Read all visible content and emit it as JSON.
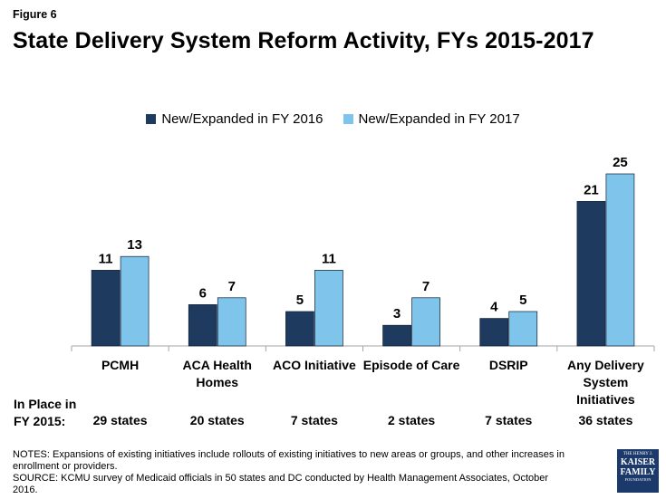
{
  "figure_label": "Figure 6",
  "title": "State Delivery System Reform Activity, FYs 2015-2017",
  "colors": {
    "series_2016": "#1f3a5f",
    "series_2017": "#7fc4ea",
    "axis": "#a6a6a6"
  },
  "chart_data": {
    "type": "bar",
    "categories": [
      "PCMH",
      "ACA Health Homes",
      "ACO Initiative",
      "Episode of Care",
      "DSRIP",
      "Any Delivery System Initiatives"
    ],
    "series": [
      {
        "name": "New/Expanded in FY 2016",
        "values": [
          11,
          6,
          5,
          3,
          4,
          21
        ]
      },
      {
        "name": "New/Expanded in FY 2017",
        "values": [
          13,
          7,
          11,
          7,
          5,
          25
        ]
      }
    ],
    "data_labels": true,
    "legend_position": "top",
    "grid": false,
    "ylim": [
      0,
      25
    ]
  },
  "category_labels": [
    "PCMH",
    "ACA Health\nHomes",
    "ACO Initiative",
    "Episode of Care",
    "DSRIP",
    "Any Delivery\nSystem\nInitiatives"
  ],
  "in_place": {
    "label_line1": "In Place in",
    "label_line2": "FY 2015:",
    "values": [
      "29 states",
      "20 states",
      "7 states",
      "2 states",
      "7 states",
      "36 states"
    ]
  },
  "notes": {
    "line1": "NOTES: Expansions of existing initiatives include rollouts of existing initiatives to new areas or groups, and other increases in",
    "line2": "enrollment or providers.",
    "line3": "SOURCE: KCMU survey of Medicaid officials in 50 states and DC conducted by Health Management Associates, October 2016."
  },
  "logo": {
    "line1": "THE HENRY J.",
    "line2": "KAISER",
    "line3": "FAMILY",
    "line4": "FOUNDATION"
  }
}
